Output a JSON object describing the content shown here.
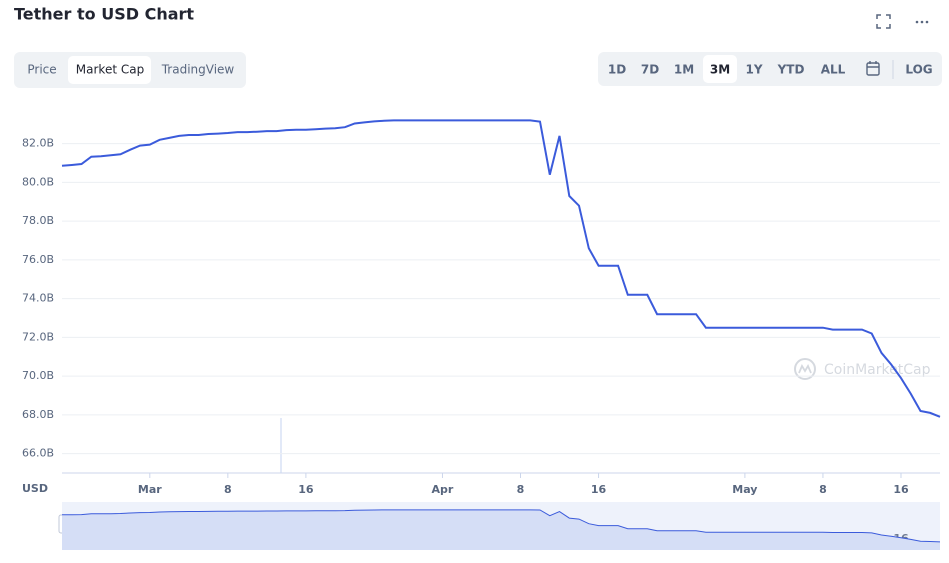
{
  "header": {
    "title": "Tether to USD Chart"
  },
  "tabs": [
    "Price",
    "Market Cap",
    "TradingView"
  ],
  "ranges": [
    "1D",
    "7D",
    "1M",
    "3M",
    "1Y",
    "YTD",
    "ALL"
  ],
  "log_button": "LOG",
  "currency_label": "USD",
  "watermark": "CoinMarketCap",
  "chart_data": {
    "type": "line",
    "color": "#3b5bdb",
    "grid": true,
    "categories": [
      null,
      null,
      null,
      null,
      null,
      null,
      null,
      null,
      null,
      "Mar",
      null,
      null,
      null,
      null,
      null,
      null,
      null,
      "8",
      null,
      null,
      null,
      null,
      null,
      null,
      null,
      "16",
      null,
      null,
      null,
      null,
      null,
      null,
      null,
      null,
      null,
      null,
      null,
      null,
      null,
      "Apr",
      null,
      null,
      null,
      null,
      null,
      null,
      null,
      "8",
      null,
      null,
      null,
      null,
      null,
      null,
      null,
      "16",
      null,
      null,
      null,
      null,
      null,
      null,
      null,
      null,
      null,
      null,
      null,
      null,
      null,
      null,
      "May",
      null,
      null,
      null,
      null,
      null,
      null,
      null,
      "8",
      null,
      null,
      null,
      null,
      null,
      null,
      null,
      "16",
      null,
      null,
      null,
      null
    ],
    "values": [
      80.86,
      80.9,
      80.95,
      81.33,
      81.35,
      81.4,
      81.45,
      81.69,
      81.9,
      81.95,
      82.2,
      82.3,
      82.4,
      82.45,
      82.45,
      82.5,
      82.52,
      82.55,
      82.6,
      82.6,
      82.62,
      82.65,
      82.65,
      82.7,
      82.72,
      82.72,
      82.75,
      82.78,
      82.8,
      82.85,
      83.04,
      83.1,
      83.15,
      83.18,
      83.2,
      83.2,
      83.2,
      83.2,
      83.2,
      83.2,
      83.2,
      83.2,
      83.2,
      83.2,
      83.2,
      83.2,
      83.2,
      83.2,
      83.2,
      83.14,
      80.4,
      82.4,
      79.3,
      78.8,
      76.6,
      75.7,
      75.7,
      75.7,
      74.2,
      74.2,
      74.2,
      73.2,
      73.2,
      73.2,
      73.2,
      73.2,
      72.5,
      72.5,
      72.5,
      72.5,
      72.5,
      72.5,
      72.5,
      72.5,
      72.5,
      72.5,
      72.5,
      72.5,
      72.5,
      72.4,
      72.4,
      72.4,
      72.4,
      72.2,
      71.2,
      70.6,
      69.9,
      69.1,
      68.2,
      68.1,
      67.9
    ],
    "ylim": [
      65.0,
      84.1
    ],
    "yticks": [
      {
        "value": 66,
        "label": "66.0B"
      },
      {
        "value": 68,
        "label": "68.0B"
      },
      {
        "value": 70,
        "label": "70.0B"
      },
      {
        "value": 72,
        "label": "72.0B"
      },
      {
        "value": 74,
        "label": "74.0B"
      },
      {
        "value": 76,
        "label": "76.0B"
      },
      {
        "value": 78,
        "label": "78.0B"
      },
      {
        "value": 80,
        "label": "80.0B"
      },
      {
        "value": 82,
        "label": "82.0B"
      }
    ]
  }
}
